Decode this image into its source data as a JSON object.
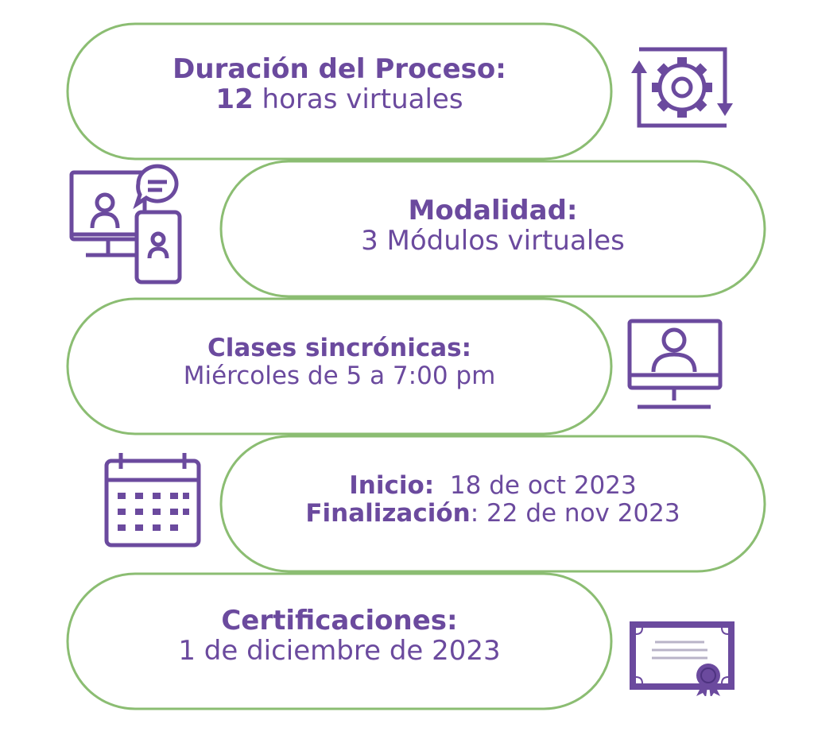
{
  "colors": {
    "purple": "#6b4a9e",
    "green_line": "#8bbd72",
    "green_band": "#86b873",
    "white": "#ffffff"
  },
  "stages": [
    {
      "title": "Duración del Proceso:",
      "value_bold": "12",
      "value": " horas virtuales",
      "icon": "gear-cycle-icon"
    },
    {
      "title": "Modalidad:",
      "value": "3 Módulos virtuales",
      "icon": "virtual-chat-devices-icon"
    },
    {
      "title": "Clases sincrónicas:",
      "value": "Miércoles de 5 a 7:00 pm",
      "icon": "monitor-user-icon"
    },
    {
      "line1_label": "Inicio:",
      "line1_value": "  18 de oct 2023",
      "line2_label": "Finalización",
      "line2_value": ": 22 de nov 2023",
      "icon": "calendar-icon"
    },
    {
      "title": "Certificaciones:",
      "value": "1 de diciembre de 2023",
      "icon": "certificate-icon"
    }
  ]
}
